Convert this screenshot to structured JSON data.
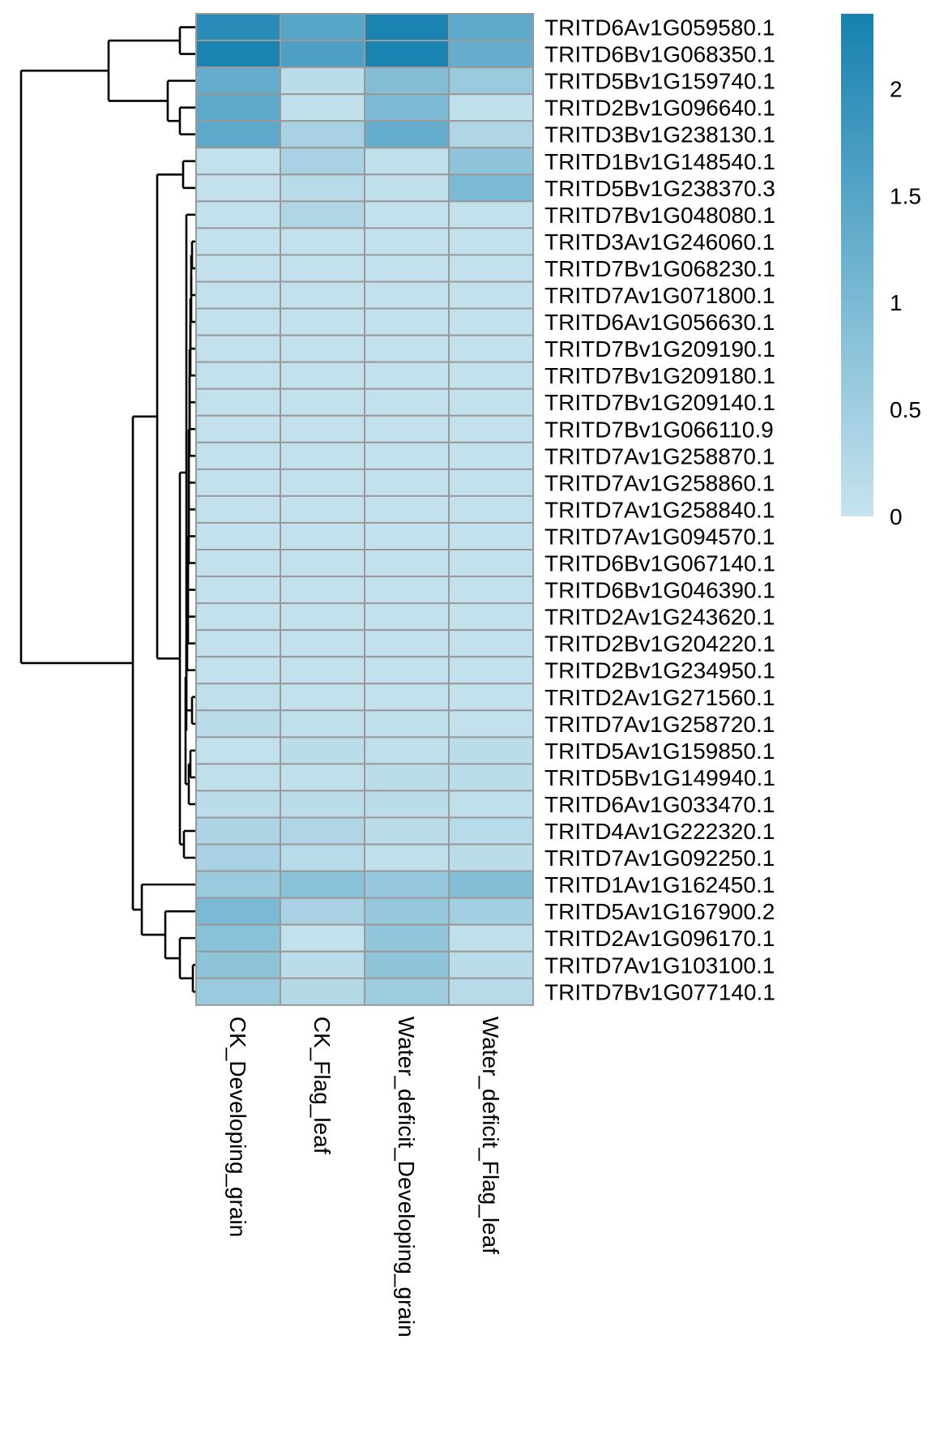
{
  "chart_data": {
    "type": "heatmap",
    "columns": [
      "CK_Developing_grain",
      "CK_Flag_leaf",
      "Water_deficit_Developing_grain",
      "Water_deficit_Flag_leaf"
    ],
    "rows": [
      {
        "label": "TRITD6Av1G059580.1",
        "values": [
          2.1,
          1.5,
          2.3,
          1.4
        ]
      },
      {
        "label": "TRITD6Bv1G068350.1",
        "values": [
          2.3,
          1.6,
          2.3,
          1.3
        ]
      },
      {
        "label": "TRITD5Bv1G159740.1",
        "values": [
          1.3,
          0.15,
          0.9,
          0.6
        ]
      },
      {
        "label": "TRITD2Bv1G096640.1",
        "values": [
          1.4,
          0.1,
          1.0,
          0.1
        ]
      },
      {
        "label": "TRITD3Bv1G238130.1",
        "values": [
          1.4,
          0.4,
          1.3,
          0.3
        ]
      },
      {
        "label": "TRITD1Bv1G148540.1",
        "values": [
          0.05,
          0.4,
          0.1,
          0.75
        ]
      },
      {
        "label": "TRITD5Bv1G238370.3",
        "values": [
          0.05,
          0.2,
          0.1,
          1.0
        ]
      },
      {
        "label": "TRITD7Bv1G048080.1",
        "values": [
          0.05,
          0.3,
          0.05,
          0.05
        ]
      },
      {
        "label": "TRITD3Av1G246060.1",
        "values": [
          0.05,
          0.05,
          0.05,
          0.05
        ]
      },
      {
        "label": "TRITD7Bv1G068230.1",
        "values": [
          0.05,
          0.05,
          0.05,
          0.05
        ]
      },
      {
        "label": "TRITD7Av1G071800.1",
        "values": [
          0.05,
          0.05,
          0.05,
          0.05
        ]
      },
      {
        "label": "TRITD6Av1G056630.1",
        "values": [
          0.05,
          0.05,
          0.05,
          0.05
        ]
      },
      {
        "label": "TRITD7Bv1G209190.1",
        "values": [
          0.05,
          0.05,
          0.05,
          0.05
        ]
      },
      {
        "label": "TRITD7Bv1G209180.1",
        "values": [
          0.05,
          0.05,
          0.05,
          0.05
        ]
      },
      {
        "label": "TRITD7Bv1G209140.1",
        "values": [
          0.05,
          0.05,
          0.05,
          0.05
        ]
      },
      {
        "label": "TRITD7Bv1G066110.9",
        "values": [
          0.05,
          0.05,
          0.05,
          0.05
        ]
      },
      {
        "label": "TRITD7Av1G258870.1",
        "values": [
          0.05,
          0.05,
          0.05,
          0.05
        ]
      },
      {
        "label": "TRITD7Av1G258860.1",
        "values": [
          0.05,
          0.05,
          0.05,
          0.05
        ]
      },
      {
        "label": "TRITD7Av1G258840.1",
        "values": [
          0.05,
          0.05,
          0.05,
          0.05
        ]
      },
      {
        "label": "TRITD7Av1G094570.1",
        "values": [
          0.05,
          0.05,
          0.05,
          0.05
        ]
      },
      {
        "label": "TRITD6Bv1G067140.1",
        "values": [
          0.05,
          0.05,
          0.05,
          0.05
        ]
      },
      {
        "label": "TRITD6Bv1G046390.1",
        "values": [
          0.05,
          0.05,
          0.05,
          0.05
        ]
      },
      {
        "label": "TRITD2Av1G243620.1",
        "values": [
          0.05,
          0.05,
          0.05,
          0.05
        ]
      },
      {
        "label": "TRITD2Bv1G204220.1",
        "values": [
          0.05,
          0.05,
          0.05,
          0.05
        ]
      },
      {
        "label": "TRITD2Bv1G234950.1",
        "values": [
          0.05,
          0.05,
          0.05,
          0.05
        ]
      },
      {
        "label": "TRITD2Av1G271560.1",
        "values": [
          0.1,
          0.05,
          0.05,
          0.05
        ]
      },
      {
        "label": "TRITD7Av1G258720.1",
        "values": [
          0.15,
          0.1,
          0.1,
          0.05
        ]
      },
      {
        "label": "TRITD5Av1G159850.1",
        "values": [
          0.05,
          0.15,
          0.1,
          0.15
        ]
      },
      {
        "label": "TRITD5Bv1G149940.1",
        "values": [
          0.1,
          0.1,
          0.15,
          0.15
        ]
      },
      {
        "label": "TRITD6Av1G033470.1",
        "values": [
          0.15,
          0.15,
          0.15,
          0.1
        ]
      },
      {
        "label": "TRITD4Av1G222320.1",
        "values": [
          0.35,
          0.3,
          0.15,
          0.2
        ]
      },
      {
        "label": "TRITD7Av1G092250.1",
        "values": [
          0.4,
          0.2,
          0.1,
          0.15
        ]
      },
      {
        "label": "TRITD1Av1G162450.1",
        "values": [
          0.6,
          0.8,
          0.65,
          0.9
        ]
      },
      {
        "label": "TRITD5Av1G167900.2",
        "values": [
          1.0,
          0.4,
          0.65,
          0.5
        ]
      },
      {
        "label": "TRITD2Av1G096170.1",
        "values": [
          0.8,
          0.05,
          0.7,
          0.1
        ]
      },
      {
        "label": "TRITD7Av1G103100.1",
        "values": [
          0.75,
          0.15,
          0.75,
          0.15
        ]
      },
      {
        "label": "TRITD7Bv1G077140.1",
        "values": [
          0.6,
          0.25,
          0.55,
          0.2
        ]
      }
    ],
    "color_scale": {
      "min": 0,
      "max": 2.35,
      "low_color": "#c6e3ee",
      "high_color": "#1681b0",
      "ticks": [
        0,
        0.5,
        1,
        1.5,
        2
      ],
      "tick_labels": [
        "0",
        "0.5",
        "1",
        "1.5",
        "2"
      ]
    },
    "cell_border_color": "#999999",
    "row_dendrogram": true
  }
}
